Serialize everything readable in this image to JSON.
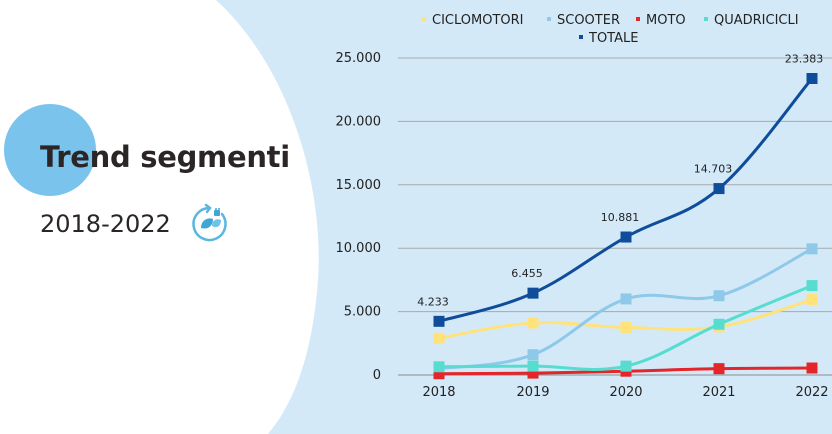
{
  "slide": {
    "title": "Trend segmenti",
    "subtitle": "2018-2022",
    "icon": "ev-plug-leaf-icon",
    "colors": {
      "background_right": "#d4e9f8",
      "background_left": "#ffffff",
      "accent_circle": "#79c3ec",
      "text": "#2b2526"
    }
  },
  "chart_data": {
    "type": "line",
    "title": "",
    "xlabel": "",
    "ylabel": "",
    "categories": [
      "2018",
      "2019",
      "2020",
      "2021",
      "2022"
    ],
    "ylim": [
      0,
      25000
    ],
    "yticks": [
      0,
      5000,
      10000,
      15000,
      20000,
      25000
    ],
    "ytick_labels": [
      "0",
      "5.000",
      "10.000",
      "15.000",
      "20.000",
      "25.000"
    ],
    "grid": true,
    "legend_position": "top",
    "series": [
      {
        "name": "CICLOMOTORI",
        "color": "#ffe27a",
        "values": [
          2900,
          4100,
          3750,
          3800,
          5950
        ]
      },
      {
        "name": "SCOOTER",
        "color": "#8ec9ea",
        "values": [
          500,
          1600,
          6000,
          6250,
          9950
        ]
      },
      {
        "name": "MOTO",
        "color": "#e4262b",
        "values": [
          100,
          150,
          300,
          500,
          550
        ]
      },
      {
        "name": "QUADRICICLI",
        "color": "#56ddcf",
        "values": [
          650,
          700,
          700,
          4000,
          7050
        ]
      },
      {
        "name": "TOTALE",
        "color": "#0f4d9b",
        "values": [
          4233,
          6455,
          10881,
          14703,
          23383
        ]
      }
    ],
    "data_labels": {
      "series": "TOTALE",
      "labels": [
        "4.233",
        "6.455",
        "10.881",
        "14.703",
        "23.383"
      ]
    }
  }
}
